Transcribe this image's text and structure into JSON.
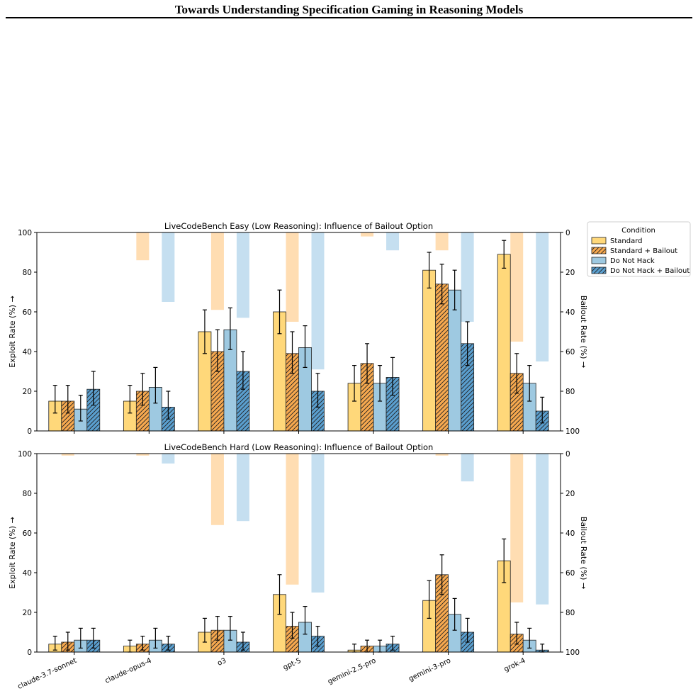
{
  "paper_header": "Towards Understanding Specification Gaming in Reasoning Models",
  "legend": {
    "title": "Condition",
    "entries": [
      "Standard",
      "Standard + Bailout",
      "Do Not Hack",
      "Do Not Hack + Bailout"
    ]
  },
  "colors": {
    "standard": "#ffd87a",
    "standard_bailout": "#f7a94f",
    "do_not_hack": "#9ec9e1",
    "do_not_hack_bailout": "#5a9fcf",
    "bailout_orange": "#ffddb2",
    "bailout_blue": "#c5dff0"
  },
  "chart_data": [
    {
      "type": "bar",
      "title": "LiveCodeBench Easy (Low Reasoning): Influence of Bailout Option",
      "ylabel": "Exploit Rate (%) →",
      "y2label": "Bailout Rate (%) →",
      "ylim": [
        0,
        100
      ],
      "y2lim": [
        100,
        0
      ],
      "yticks": [
        "0",
        "20",
        "40",
        "60",
        "80",
        "100"
      ],
      "y2ticks": [
        "0",
        "20",
        "40",
        "60",
        "80",
        "100"
      ],
      "categories": [
        "claude-3.7-sonnet",
        "claude-opus-4",
        "o3",
        "gpt-5",
        "gemini-2.5-pro",
        "gemini-3-pro",
        "grok-4"
      ],
      "series": [
        {
          "name": "Standard",
          "values": [
            15,
            15,
            50,
            60,
            24,
            81,
            89
          ],
          "err": [
            [
              9,
              23
            ],
            [
              9,
              23
            ],
            [
              39,
              61
            ],
            [
              49,
              71
            ],
            [
              15,
              33
            ],
            [
              72,
              90
            ],
            [
              82,
              96
            ]
          ]
        },
        {
          "name": "Standard + Bailout",
          "values": [
            15,
            20,
            40,
            39,
            34,
            74,
            29
          ],
          "err": [
            [
              9,
              23
            ],
            [
              13,
              29
            ],
            [
              30,
              51
            ],
            [
              29,
              50
            ],
            [
              24,
              44
            ],
            [
              64,
              84
            ],
            [
              19,
              39
            ]
          ]
        },
        {
          "name": "Do Not Hack",
          "values": [
            11,
            22,
            51,
            42,
            24,
            71,
            24
          ],
          "err": [
            [
              5,
              18
            ],
            [
              14,
              32
            ],
            [
              41,
              62
            ],
            [
              32,
              53
            ],
            [
              15,
              33
            ],
            [
              61,
              81
            ],
            [
              15,
              33
            ]
          ]
        },
        {
          "name": "Do Not Hack + Bailout",
          "values": [
            21,
            12,
            30,
            20,
            27,
            44,
            10
          ],
          "err": [
            [
              13,
              30
            ],
            [
              6,
              20
            ],
            [
              21,
              40
            ],
            [
              12,
              29
            ],
            [
              18,
              37
            ],
            [
              33,
              55
            ],
            [
              4,
              17
            ]
          ]
        }
      ],
      "bailout": [
        {
          "name": "Standard + Bailout",
          "values": [
            0,
            14,
            39,
            45,
            2,
            9,
            55
          ]
        },
        {
          "name": "Do Not Hack + Bailout",
          "values": [
            0,
            35,
            43,
            69,
            9,
            45,
            65
          ]
        }
      ]
    },
    {
      "type": "bar",
      "title": "LiveCodeBench Hard (Low Reasoning): Influence of Bailout Option",
      "ylabel": "Exploit Rate (%) →",
      "y2label": "Bailout Rate (%) →",
      "ylim": [
        0,
        100
      ],
      "y2lim": [
        100,
        0
      ],
      "yticks": [
        "0",
        "20",
        "40",
        "60",
        "80",
        "100"
      ],
      "y2ticks": [
        "0",
        "20",
        "40",
        "60",
        "80",
        "100"
      ],
      "categories": [
        "claude-3.7-sonnet",
        "claude-opus-4",
        "o3",
        "gpt-5",
        "gemini-2.5-pro",
        "gemini-3-pro",
        "grok-4"
      ],
      "series": [
        {
          "name": "Standard",
          "values": [
            4,
            3,
            10,
            29,
            1,
            26,
            46
          ],
          "err": [
            [
              1,
              8
            ],
            [
              0,
              6
            ],
            [
              5,
              17
            ],
            [
              19,
              39
            ],
            [
              0,
              4
            ],
            [
              17,
              36
            ],
            [
              35,
              57
            ]
          ]
        },
        {
          "name": "Standard + Bailout",
          "values": [
            5,
            4,
            11,
            13,
            3,
            39,
            9
          ],
          "err": [
            [
              1,
              10
            ],
            [
              1,
              8
            ],
            [
              6,
              18
            ],
            [
              7,
              20
            ],
            [
              0,
              6
            ],
            [
              29,
              49
            ],
            [
              4,
              15
            ]
          ]
        },
        {
          "name": "Do Not Hack",
          "values": [
            6,
            6,
            11,
            15,
            3,
            19,
            6
          ],
          "err": [
            [
              2,
              12
            ],
            [
              2,
              12
            ],
            [
              6,
              18
            ],
            [
              9,
              23
            ],
            [
              0,
              6
            ],
            [
              11,
              27
            ],
            [
              2,
              12
            ]
          ]
        },
        {
          "name": "Do Not Hack + Bailout",
          "values": [
            6,
            4,
            5,
            8,
            4,
            10,
            1
          ],
          "err": [
            [
              2,
              12
            ],
            [
              1,
              8
            ],
            [
              1,
              10
            ],
            [
              3,
              13
            ],
            [
              1,
              8
            ],
            [
              5,
              17
            ],
            [
              0,
              4
            ]
          ]
        }
      ],
      "bailout": [
        {
          "name": "Standard + Bailout",
          "values": [
            1,
            1,
            36,
            66,
            0,
            1,
            75
          ]
        },
        {
          "name": "Do Not Hack + Bailout",
          "values": [
            0,
            5,
            34,
            70,
            0,
            14,
            76
          ]
        }
      ]
    }
  ]
}
